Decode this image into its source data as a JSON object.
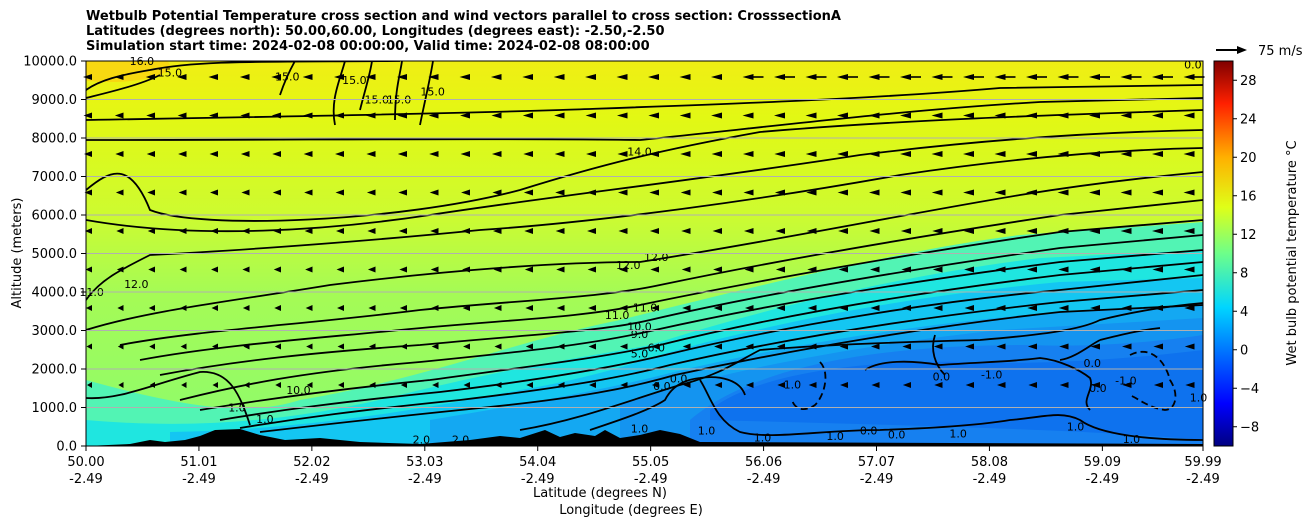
{
  "chart_data": {
    "type": "contour",
    "title_lines": [
      "Wetbulb Potential Temperature cross section and wind vectors parallel to cross section: CrosssectionA",
      "Latitudes (degrees north): 50.00,60.00, Longitudes (degrees east): -2.50,-2.50",
      "Simulation start time: 2024-02-08 00:00:00, Valid time: 2024-02-08 08:00:00"
    ],
    "ylabel": "Altitude (meters)",
    "xlabel_lat": "Latitude (degrees N)",
    "xlabel_lon": "Longitude (degrees E)",
    "x_range": [
      50.0,
      59.99
    ],
    "ylim": [
      0,
      10000
    ],
    "x_ticks": [
      {
        "lat": "50.00",
        "lon": "-2.49",
        "value": 50.0
      },
      {
        "lat": "51.01",
        "lon": "-2.49",
        "value": 51.01
      },
      {
        "lat": "52.02",
        "lon": "-2.49",
        "value": 52.02
      },
      {
        "lat": "53.03",
        "lon": "-2.49",
        "value": 53.03
      },
      {
        "lat": "54.04",
        "lon": "-2.49",
        "value": 54.04
      },
      {
        "lat": "55.05",
        "lon": "-2.49",
        "value": 55.05
      },
      {
        "lat": "56.06",
        "lon": "-2.49",
        "value": 56.06
      },
      {
        "lat": "57.07",
        "lon": "-2.49",
        "value": 57.07
      },
      {
        "lat": "58.08",
        "lon": "-2.49",
        "value": 58.08
      },
      {
        "lat": "59.09",
        "lon": "-2.49",
        "value": 59.09
      },
      {
        "lat": "59.99",
        "lon": "-2.49",
        "value": 59.99
      }
    ],
    "y_ticks": [
      {
        "label": "0.0",
        "value": 0
      },
      {
        "label": "1000.0",
        "value": 1000
      },
      {
        "label": "2000.0",
        "value": 2000
      },
      {
        "label": "3000.0",
        "value": 3000
      },
      {
        "label": "4000.0",
        "value": 4000
      },
      {
        "label": "5000.0",
        "value": 5000
      },
      {
        "label": "6000.0",
        "value": 6000
      },
      {
        "label": "7000.0",
        "value": 7000
      },
      {
        "label": "8000.0",
        "value": 8000
      },
      {
        "label": "9000.0",
        "value": 9000
      },
      {
        "label": "10000.0",
        "value": 10000
      }
    ],
    "colorbar": {
      "label": "Wet bulb potential temperature $^\\circ$C",
      "label_display": "Wet bulb potential temperature °C",
      "range": [
        -10,
        30
      ],
      "ticks": [
        {
          "label": "−8",
          "value": -8
        },
        {
          "label": "−4",
          "value": -4
        },
        {
          "label": "0",
          "value": 0
        },
        {
          "label": "4",
          "value": 4
        },
        {
          "label": "8",
          "value": 8
        },
        {
          "label": "12",
          "value": 12
        },
        {
          "label": "16",
          "value": 16
        },
        {
          "label": "20",
          "value": 20
        },
        {
          "label": "24",
          "value": 24
        },
        {
          "label": "28",
          "value": 28
        }
      ]
    },
    "wind_key": {
      "label": "75 m/s"
    },
    "contour_labels": [
      {
        "text": "16.0",
        "x": 50.5,
        "y": 9900
      },
      {
        "text": "15.0",
        "x": 50.75,
        "y": 9600
      },
      {
        "text": "15.0",
        "x": 51.8,
        "y": 9500
      },
      {
        "text": "15.0",
        "x": 52.4,
        "y": 9400
      },
      {
        "text": "15.0",
        "x": 52.6,
        "y": 8900
      },
      {
        "text": "15.0",
        "x": 52.8,
        "y": 8900
      },
      {
        "text": "15.0",
        "x": 53.1,
        "y": 9100
      },
      {
        "text": "14.0",
        "x": 54.95,
        "y": 7550
      },
      {
        "text": "12.0",
        "x": 54.85,
        "y": 4600
      },
      {
        "text": "12.0",
        "x": 55.1,
        "y": 4800
      },
      {
        "text": "12.0",
        "x": 50.45,
        "y": 4100
      },
      {
        "text": "11.0",
        "x": 50.05,
        "y": 3900
      },
      {
        "text": "11.0",
        "x": 54.75,
        "y": 3300
      },
      {
        "text": "11.0",
        "x": 55.0,
        "y": 3500
      },
      {
        "text": "10.0",
        "x": 54.95,
        "y": 3000
      },
      {
        "text": "9.0",
        "x": 54.95,
        "y": 2800
      },
      {
        "text": "6.0",
        "x": 55.1,
        "y": 2450
      },
      {
        "text": "5.0",
        "x": 54.95,
        "y": 2300
      },
      {
        "text": "10.0",
        "x": 51.9,
        "y": 1350
      },
      {
        "text": "1.0",
        "x": 51.35,
        "y": 900
      },
      {
        "text": "1.0",
        "x": 51.6,
        "y": 600
      },
      {
        "text": "0.0",
        "x": 55.3,
        "y": 1650
      },
      {
        "text": "0.0",
        "x": 55.15,
        "y": 1450
      },
      {
        "text": "-1.0",
        "x": 56.3,
        "y": 1500
      },
      {
        "text": "0.0",
        "x": 57.65,
        "y": 1700
      },
      {
        "text": "-1.0",
        "x": 58.1,
        "y": 1750
      },
      {
        "text": "0.0",
        "x": 59.0,
        "y": 2050
      },
      {
        "text": "-1.0",
        "x": 59.3,
        "y": 1600
      },
      {
        "text": "0.0",
        "x": 59.05,
        "y": 1400
      },
      {
        "text": "1.0",
        "x": 58.85,
        "y": 400
      },
      {
        "text": "1.0",
        "x": 54.95,
        "y": 350
      },
      {
        "text": "1.0",
        "x": 55.55,
        "y": 300
      },
      {
        "text": "1.0",
        "x": 56.05,
        "y": 120
      },
      {
        "text": "1.0",
        "x": 56.7,
        "y": 150
      },
      {
        "text": "0.0",
        "x": 57.0,
        "y": 300
      },
      {
        "text": "0.0",
        "x": 57.25,
        "y": 200
      },
      {
        "text": "1.0",
        "x": 57.8,
        "y": 220
      },
      {
        "text": "2.0",
        "x": 53.0,
        "y": 70
      },
      {
        "text": "2.0",
        "x": 53.35,
        "y": 70
      },
      {
        "text": "1.0",
        "x": 59.35,
        "y": 80
      },
      {
        "text": "1.0",
        "x": 59.95,
        "y": 1150
      },
      {
        "text": "0.0",
        "x": 59.9,
        "y": 9800
      }
    ]
  }
}
